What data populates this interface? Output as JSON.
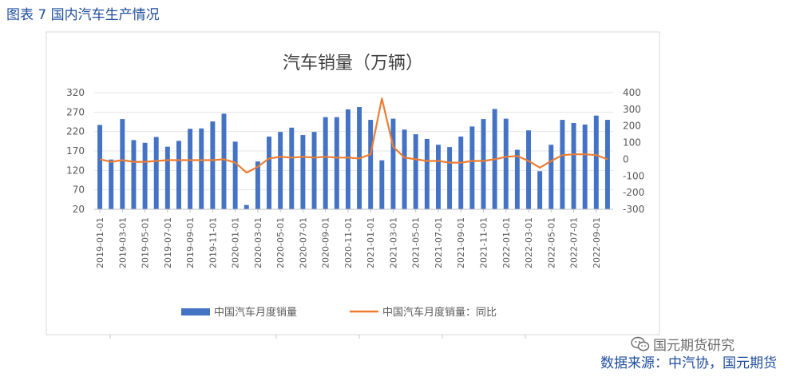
{
  "figure_title": "图表 7 国内汽车生产情况",
  "source_text": "数据来源：中汽协，国元期货",
  "watermark_text": "国元期货研究",
  "chart_data": {
    "type": "bar+line",
    "title": "汽车销量（万辆）",
    "categories": [
      "2019-01",
      "2019-02",
      "2019-03",
      "2019-04",
      "2019-05",
      "2019-06",
      "2019-07",
      "2019-08",
      "2019-09",
      "2019-10",
      "2019-11",
      "2019-12",
      "2020-01",
      "2020-02",
      "2020-03",
      "2020-04",
      "2020-05",
      "2020-06",
      "2020-07",
      "2020-08",
      "2020-09",
      "2020-10",
      "2020-11",
      "2020-12",
      "2021-01",
      "2021-02",
      "2021-03",
      "2021-04",
      "2021-05",
      "2021-06",
      "2021-07",
      "2021-08",
      "2021-09",
      "2021-10",
      "2021-11",
      "2021-12",
      "2022-01",
      "2022-02",
      "2022-03",
      "2022-04",
      "2022-05",
      "2022-06",
      "2022-07",
      "2022-08",
      "2022-09",
      "2022-10"
    ],
    "x_tick_labels": [
      "2019-01-01",
      "2019-03-01",
      "2019-05-01",
      "2019-07-01",
      "2019-09-01",
      "2019-11-01",
      "2020-01-01",
      "2020-03-01",
      "2020-05-01",
      "2020-07-01",
      "2020-09-01",
      "2020-11-01",
      "2021-01-01",
      "2021-03-01",
      "2021-05-01",
      "2021-07-01",
      "2021-09-01",
      "2021-11-01",
      "2022-01-01",
      "2022-03-01",
      "2022-05-01",
      "2022-07-01",
      "2022-09-01"
    ],
    "series": [
      {
        "name": "中国汽车月度销量",
        "type": "bar",
        "axis": "left",
        "color": "#4472c4",
        "values": [
          237,
          148,
          252,
          198,
          191,
          206,
          181,
          196,
          227,
          228,
          246,
          266,
          194,
          31,
          143,
          207,
          219,
          230,
          211,
          219,
          257,
          257,
          277,
          283,
          250,
          146,
          253,
          225,
          213,
          201,
          186,
          180,
          207,
          233,
          252,
          278,
          253,
          173,
          223,
          118,
          186,
          250,
          242,
          238,
          261,
          250
        ]
      },
      {
        "name": "中国汽车月度销量：同比",
        "type": "line",
        "axis": "right",
        "color": "#ed7d31",
        "values": [
          0,
          -15,
          -5,
          -15,
          -15,
          -10,
          -5,
          -5,
          -5,
          -5,
          -5,
          0,
          -20,
          -80,
          -45,
          5,
          15,
          10,
          15,
          10,
          15,
          10,
          10,
          5,
          30,
          365,
          75,
          10,
          0,
          -10,
          -10,
          -20,
          -20,
          -10,
          -10,
          0,
          15,
          20,
          -10,
          -50,
          -10,
          25,
          30,
          30,
          25,
          0
        ]
      }
    ],
    "y_left": {
      "min": 20,
      "max": 320,
      "ticks": [
        "320",
        "270",
        "220",
        "170",
        "120",
        "70",
        "20"
      ]
    },
    "y_right": {
      "min": -300,
      "max": 400,
      "ticks": [
        "400",
        "300",
        "200",
        "100",
        "0",
        "-100",
        "-200",
        "-300"
      ]
    },
    "legend_position": "bottom",
    "grid": true
  }
}
